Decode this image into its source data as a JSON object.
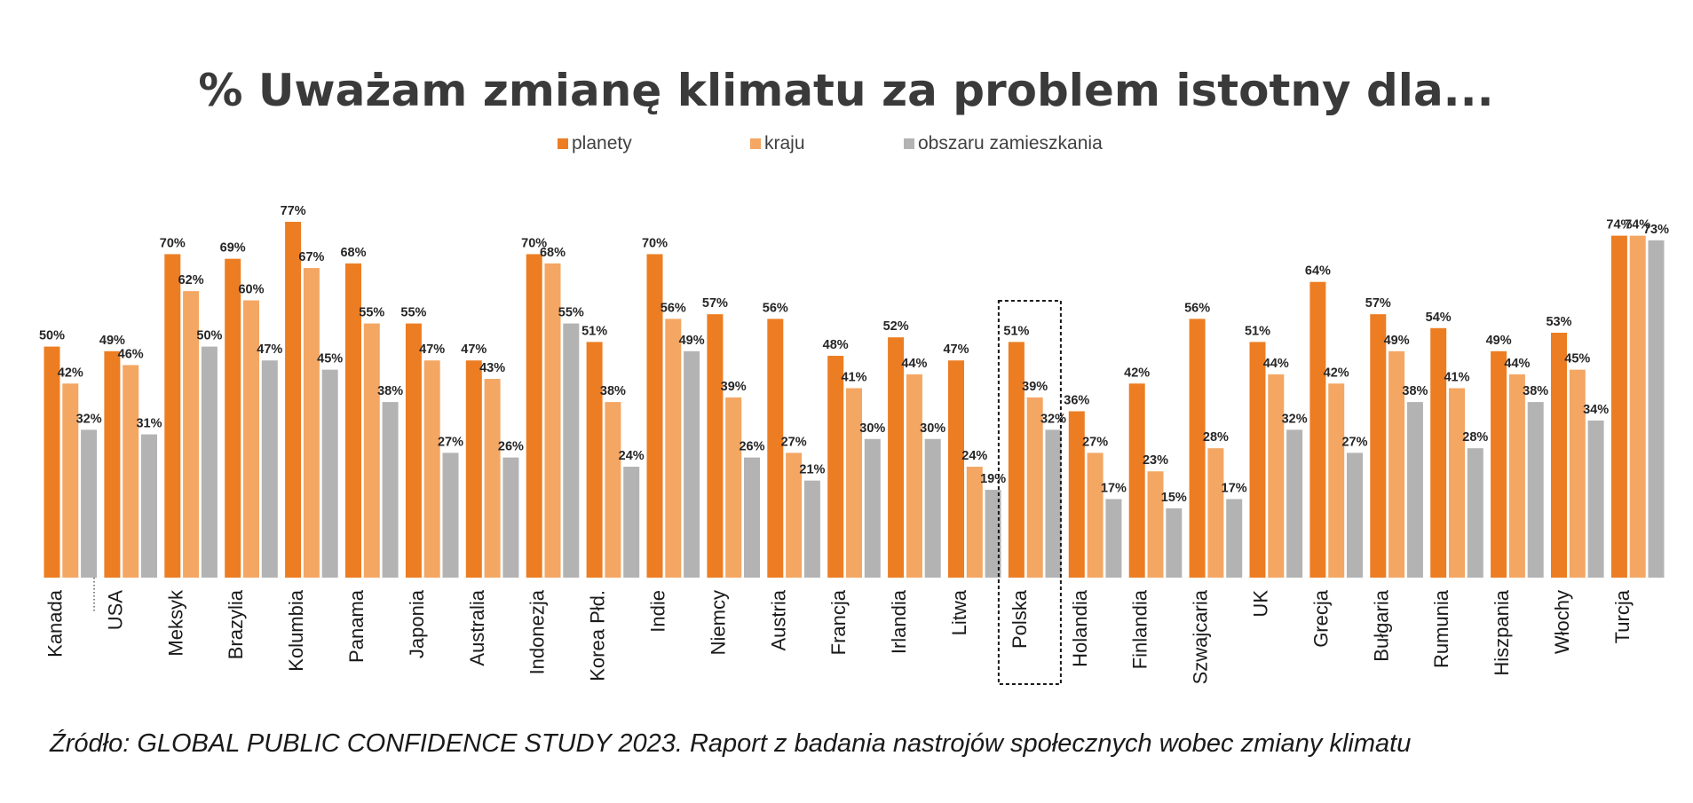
{
  "chart_data": {
    "type": "bar",
    "title": "% Uważam zmianę klimatu za problem istotny dla...",
    "source": "Źródło: GLOBAL PUBLIC CONFIDENCE STUDY 2023. Raport z badania nastrojów społecznych wobec zmiany klimatu",
    "categories": [
      "Kanada",
      "USA",
      "Meksyk",
      "Brazylia",
      "Kolumbia",
      "Panama",
      "Japonia",
      "Australia",
      "Indonezja",
      "Korea Płd.",
      "Indie",
      "Niemcy",
      "Austria",
      "Francja",
      "Irlandia",
      "Litwa",
      "Polska",
      "Holandia",
      "Finlandia",
      "Szwajcaria",
      "UK",
      "Grecja",
      "Bułgaria",
      "Rumunia",
      "Hiszpania",
      "Włochy",
      "Turcja"
    ],
    "series": [
      {
        "name": "planety",
        "color": "#ed7d22",
        "values": [
          50,
          49,
          70,
          69,
          77,
          68,
          55,
          47,
          70,
          51,
          70,
          57,
          56,
          48,
          52,
          47,
          51,
          36,
          42,
          56,
          51,
          64,
          57,
          54,
          49,
          53,
          74
        ],
        "labels": [
          "50%",
          "49%",
          "70%",
          "69%",
          "77%",
          "68%",
          "55%",
          "47%",
          "70%",
          "51%",
          "70%",
          "57%",
          "56%",
          "48%",
          "52%",
          "47%",
          "51%",
          "36%",
          "42%",
          "56%",
          "51%",
          "64%",
          "57%",
          "54%",
          "49%",
          "53%",
          "74%"
        ]
      },
      {
        "name": "kraju",
        "color": "#f4a663",
        "values": [
          42,
          46,
          62,
          60,
          67,
          55,
          47,
          43,
          68,
          38,
          56,
          39,
          27,
          41,
          44,
          24,
          39,
          27,
          23,
          28,
          44,
          42,
          49,
          41,
          44,
          45,
          74
        ],
        "labels": [
          "42%",
          "46%",
          "62%",
          "60%",
          "67%",
          "55%",
          "47%",
          "43%",
          "68%",
          "38%",
          "56%",
          "39%",
          "27%",
          "41%",
          "44%",
          "24%",
          "39%",
          "27%",
          "23%",
          "28%",
          "44%",
          "42%",
          "49%",
          "41%",
          "44%",
          "45%",
          "74%"
        ]
      },
      {
        "name": "obszaru zamieszkania",
        "color": "#b3b3b3",
        "values": [
          32,
          31,
          50,
          47,
          45,
          38,
          27,
          26,
          55,
          24,
          49,
          26,
          21,
          30,
          30,
          19,
          32,
          17,
          15,
          17,
          32,
          27,
          38,
          28,
          38,
          34,
          73
        ],
        "labels": [
          "32%",
          "31%",
          "50%",
          "47%",
          "45%",
          "38%",
          "27%",
          "26%",
          "55%",
          "24%",
          "49%",
          "26%",
          "21%",
          "30%",
          "30%",
          "19%",
          "32%",
          "17%",
          "15%",
          "17%",
          "32%",
          "27%",
          "38%",
          "28%",
          "38%",
          "34%",
          "73%"
        ]
      }
    ],
    "highlight": "Polska",
    "ylim": [
      0,
      80
    ],
    "grid": false,
    "legend": "top-center"
  }
}
